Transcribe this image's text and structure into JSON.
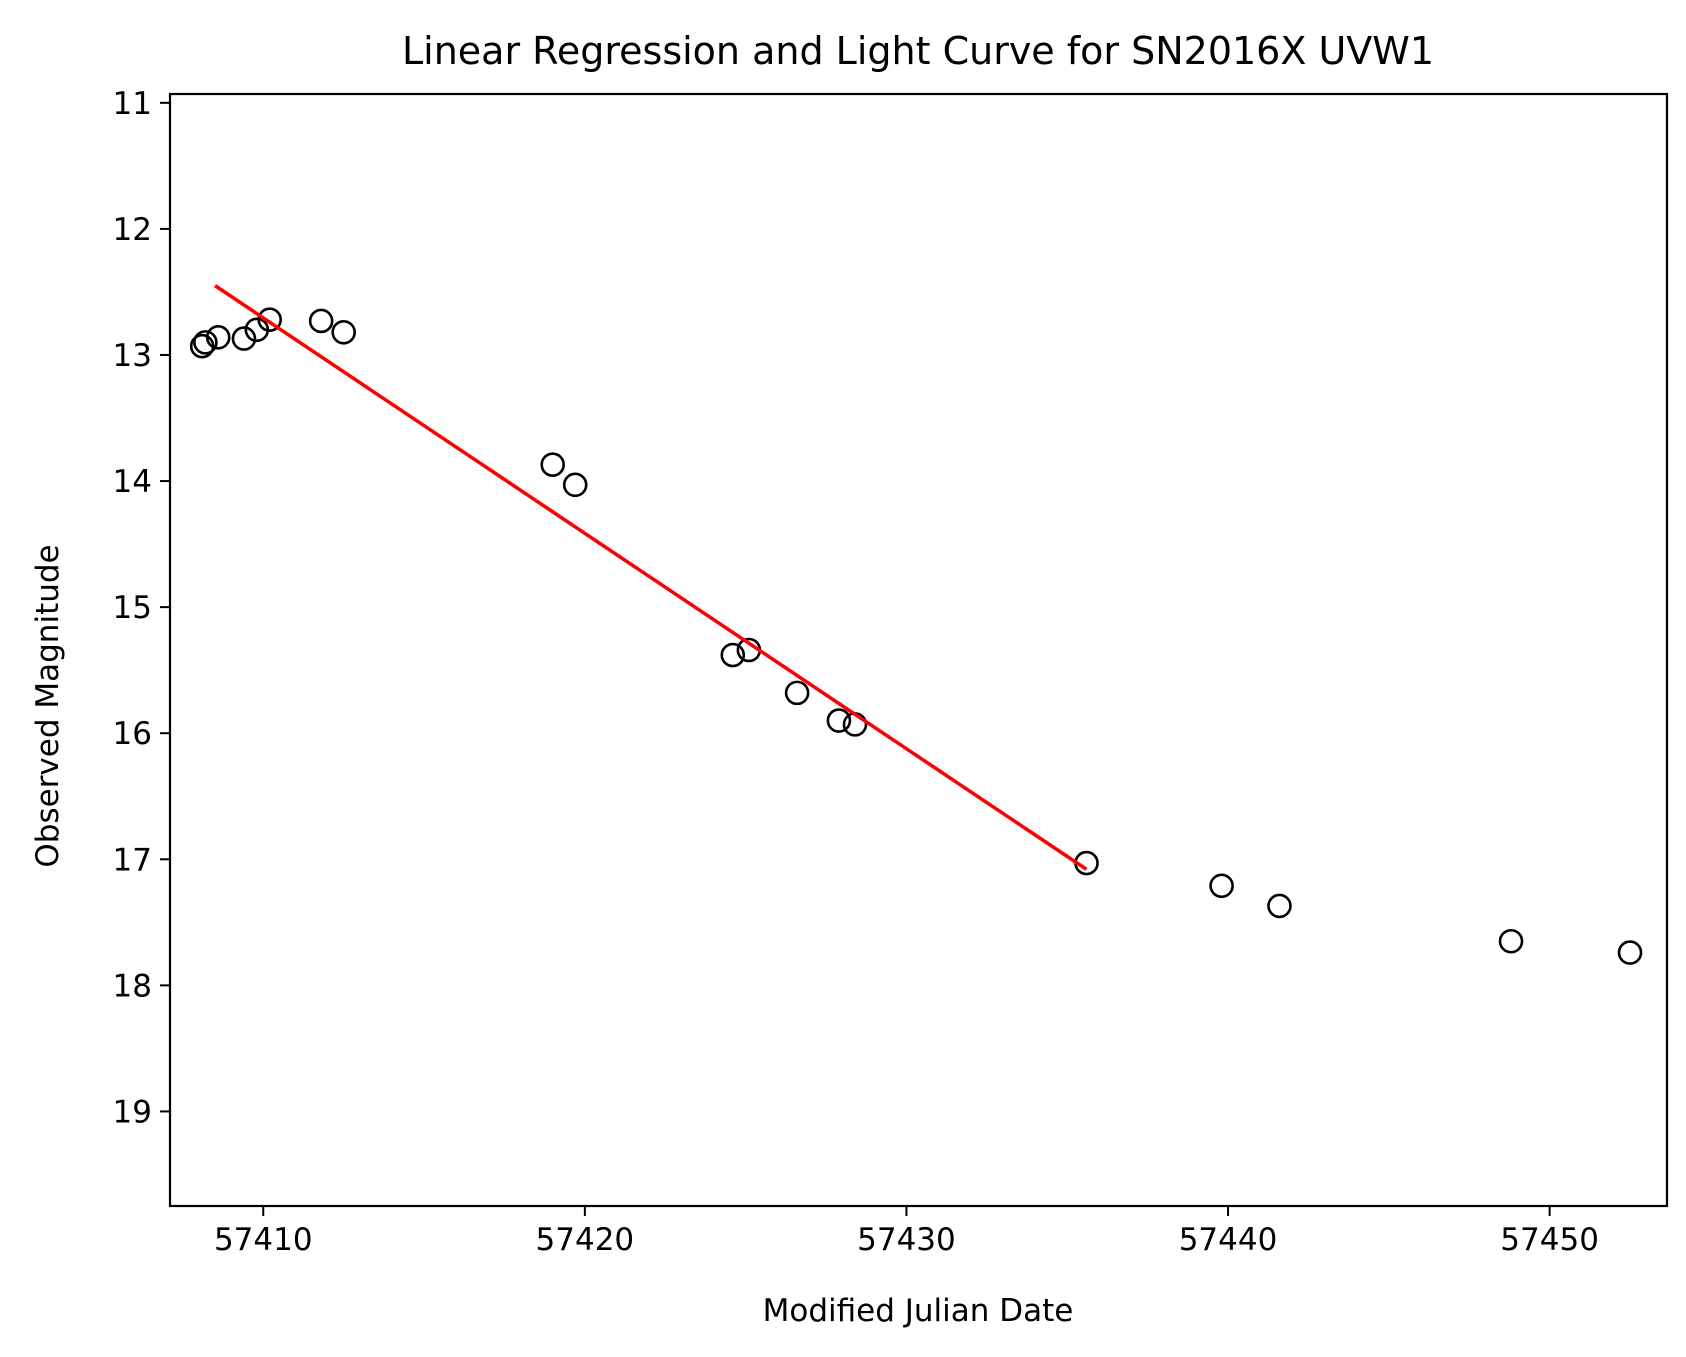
{
  "chart_data": {
    "type": "scatter",
    "title": "Linear Regression and Light Curve for SN2016X UVW1",
    "xlabel": "Modified Julian Date",
    "ylabel": "Observed Magnitude",
    "xlim": [
      57407.1,
      53.65
    ],
    "ylim": [
      19.75,
      10.93
    ],
    "y_inverted": true,
    "grid": false,
    "x_ticks": [
      57410,
      57420,
      57430,
      57440,
      57450
    ],
    "y_ticks": [
      11,
      12,
      13,
      14,
      15,
      16,
      17,
      18,
      19
    ],
    "series": [
      {
        "kind": "scatter",
        "marker": "open-circle",
        "color": "#000000",
        "x": [
          57408.1,
          57408.2,
          57408.6,
          57409.4,
          57409.8,
          57410.2,
          57411.8,
          57412.5,
          57419.0,
          57419.7,
          57424.6,
          57425.1,
          57426.6,
          57427.9,
          57428.4,
          57435.6,
          57439.8,
          57441.6,
          57448.8,
          57452.5
        ],
        "y": [
          12.93,
          12.9,
          12.86,
          12.87,
          12.8,
          12.72,
          12.73,
          12.82,
          13.87,
          14.03,
          15.38,
          15.34,
          15.68,
          15.9,
          15.93,
          17.03,
          17.21,
          17.37,
          17.65,
          17.74
        ]
      },
      {
        "kind": "line",
        "color": "#ff0000",
        "x": [
          57408.5,
          57435.6
        ],
        "y": [
          12.45,
          17.08
        ]
      }
    ]
  }
}
